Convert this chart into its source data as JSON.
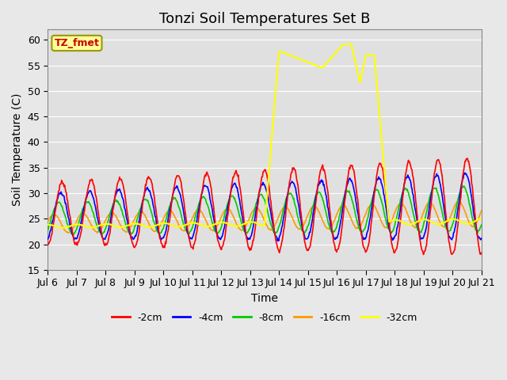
{
  "title": "Tonzi Soil Temperatures Set B",
  "xlabel": "Time",
  "ylabel": "Soil Temperature (C)",
  "ylim": [
    15,
    62
  ],
  "yticks": [
    15,
    20,
    25,
    30,
    35,
    40,
    45,
    50,
    55,
    60
  ],
  "series": [
    "-2cm",
    "-4cm",
    "-8cm",
    "-16cm",
    "-32cm"
  ],
  "colors": [
    "#ff0000",
    "#0000ff",
    "#00cc00",
    "#ff9900",
    "#ffff00"
  ],
  "legend_label": "TZ_fmet",
  "legend_label_color": "#cc0000",
  "legend_box_facecolor": "#ffff99",
  "legend_box_edgecolor": "#999900",
  "fig_bg_color": "#e8e8e8",
  "plot_bg_color": "#e0e0e0",
  "title_fontsize": 13,
  "axis_fontsize": 10,
  "tick_fontsize": 9,
  "x_tick_labels": [
    "Jul 6",
    "Jul 7",
    "Jul 8",
    "Jul 9",
    "Jul 10",
    "Jul 11",
    "Jul 12",
    "Jul 13",
    "Jul 14",
    "Jul 15",
    "Jul 16",
    "Jul 17",
    "Jul 18",
    "Jul 19",
    "Jul 20",
    "Jul 21"
  ],
  "yellow_anomaly_x": [
    8.0,
    9.5,
    10.2,
    10.5,
    10.8,
    11.0,
    11.3
  ],
  "yellow_anomaly_y": [
    57.8,
    54.5,
    59.0,
    59.2,
    51.5,
    57.0,
    57.0
  ]
}
